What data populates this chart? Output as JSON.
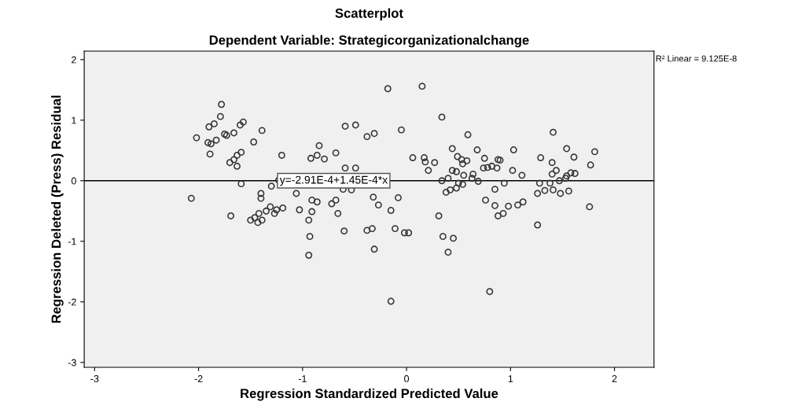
{
  "chart_data": {
    "type": "scatter",
    "title": "Scatterplot",
    "subtitle": "Dependent Variable: Strategicorganizationalchange",
    "xlabel": "Regression Standardized Predicted Value",
    "ylabel": "Regression Deleted (Press) Residual",
    "xlim": [
      -3.1,
      2.38
    ],
    "ylim": [
      -3.08,
      2.14
    ],
    "xticks": [
      -3,
      -2,
      -1,
      0,
      1,
      2
    ],
    "yticks": [
      -3,
      -2,
      -1,
      0,
      1,
      2
    ],
    "grid": false,
    "legend": false,
    "series": [
      {
        "marker": "circle",
        "color": "#333333",
        "x": [
          -1.78,
          -1.79,
          -1.85,
          -1.9,
          -1.57,
          -1.6,
          -2.02,
          -1.75,
          -1.73,
          -1.66,
          -1.39,
          -1.91,
          -1.88,
          -1.83,
          -1.47,
          -1.89,
          -1.59,
          -1.63,
          -1.66,
          -1.7,
          -1.63,
          -1.2,
          -0.59,
          -0.49,
          -0.18,
          0.15,
          -0.38,
          -0.31,
          -0.05,
          -0.84,
          -0.92,
          -0.86,
          -0.79,
          -0.68,
          0.06,
          -0.59,
          -0.49,
          -1.59,
          -1.3,
          0.34,
          0.59,
          1.41,
          0.44,
          0.68,
          1.03,
          1.54,
          1.81,
          0.17,
          0.27,
          0.18,
          0.49,
          0.53,
          0.58,
          0.75,
          0.88,
          0.9,
          1.29,
          1.61,
          1.4,
          1.77,
          0.44,
          0.48,
          0.54,
          0.74,
          0.78,
          0.82,
          0.87,
          1.02,
          1.11,
          1.44,
          1.4,
          1.54,
          1.58,
          1.62,
          0.21,
          0.55,
          0.64,
          0.4,
          0.34,
          0.5,
          0.54,
          0.63,
          0.69,
          0.94,
          1.28,
          1.38,
          1.47,
          1.53,
          0.38,
          0.42,
          0.48,
          0.85,
          1.26,
          1.33,
          1.41,
          1.48,
          1.56,
          0.76,
          0.85,
          0.98,
          1.07,
          1.12,
          0.88,
          0.93,
          1.76,
          0.31,
          1.26,
          0.35,
          0.45,
          0.4,
          0.8,
          0.02,
          -2.07,
          -1.4,
          -1.4,
          -1.69,
          -1.5,
          -1.46,
          -1.42,
          -1.39,
          -1.43,
          -1.35,
          -1.31,
          -1.27,
          -1.25,
          -1.19,
          -1.06,
          -1.03,
          -0.91,
          -0.86,
          -0.91,
          -0.94,
          -0.93,
          -0.94,
          -0.72,
          -0.68,
          -0.66,
          -0.6,
          -0.38,
          -0.33,
          -0.32,
          -0.27,
          -0.08,
          -0.15,
          -0.11,
          -0.02,
          -0.31,
          -0.15,
          -0.53,
          -0.61,
          -1.23
        ],
        "values": [
          1.26,
          1.06,
          0.94,
          0.89,
          0.97,
          0.92,
          0.71,
          0.77,
          0.75,
          0.79,
          0.83,
          0.63,
          0.61,
          0.67,
          0.64,
          0.44,
          0.47,
          0.42,
          0.35,
          0.3,
          0.24,
          0.42,
          0.9,
          0.92,
          1.52,
          1.56,
          0.73,
          0.78,
          0.84,
          0.58,
          0.37,
          0.42,
          0.36,
          0.46,
          0.38,
          0.21,
          0.21,
          -0.05,
          -0.09,
          1.05,
          0.76,
          0.8,
          0.53,
          0.51,
          0.51,
          0.53,
          0.48,
          0.38,
          0.3,
          0.31,
          0.4,
          0.35,
          0.33,
          0.37,
          0.35,
          0.34,
          0.38,
          0.39,
          0.3,
          0.26,
          0.17,
          0.15,
          0.28,
          0.21,
          0.22,
          0.24,
          0.21,
          0.17,
          0.09,
          0.17,
          0.11,
          0.08,
          0.13,
          0.12,
          0.17,
          0.09,
          0.11,
          0.04,
          0.0,
          -0.04,
          -0.06,
          0.04,
          -0.01,
          -0.04,
          -0.04,
          -0.04,
          0.0,
          0.04,
          -0.19,
          -0.15,
          -0.12,
          -0.14,
          -0.21,
          -0.16,
          -0.15,
          -0.21,
          -0.17,
          -0.32,
          -0.41,
          -0.42,
          -0.4,
          -0.35,
          -0.58,
          -0.54,
          -0.43,
          -0.58,
          -0.73,
          -0.92,
          -0.95,
          -1.18,
          -1.83,
          -0.86,
          -0.29,
          -0.21,
          -0.29,
          -0.58,
          -0.65,
          -0.61,
          -0.54,
          -0.65,
          -0.69,
          -0.5,
          -0.43,
          -0.54,
          -0.48,
          -0.45,
          -0.21,
          -0.48,
          -0.32,
          -0.35,
          -0.51,
          -0.65,
          -0.92,
          -1.23,
          -0.38,
          -0.32,
          -0.54,
          -0.83,
          -0.82,
          -0.79,
          -0.27,
          -0.4,
          -0.28,
          -0.49,
          -0.79,
          -0.86,
          -1.13,
          -1.99,
          -0.15,
          -0.14,
          0.01
        ]
      },
      {
        "type": "line",
        "color": "#000000",
        "x": [
          -3.1,
          2.38
        ],
        "values": [
          0,
          0
        ]
      }
    ],
    "annotations": [
      {
        "text": "y=-2.91E-4+1.45E-4*x",
        "x": -1.22,
        "y": 0
      },
      "R² Linear = 9.125E-8"
    ]
  }
}
